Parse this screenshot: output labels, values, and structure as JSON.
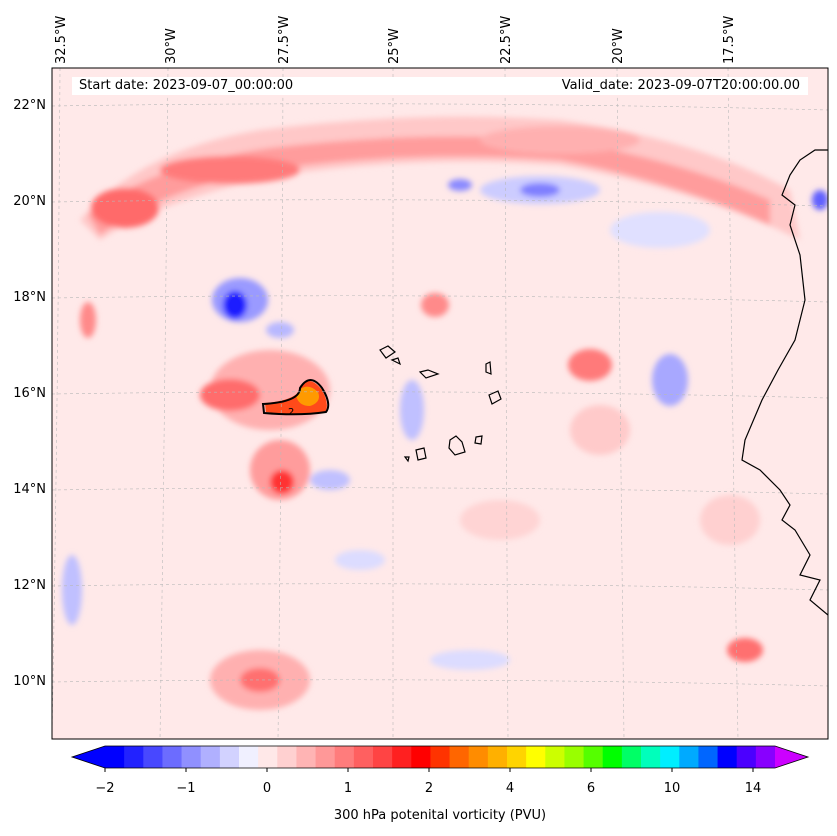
{
  "figure": {
    "start_date": "Start date: 2023-09-07_00:00:00",
    "valid_date": "Valid_date: 2023-09-07T20:00:00.00"
  },
  "axes": {
    "lon_labels": [
      "32.5°W",
      "30°W",
      "27.5°W",
      "25°W",
      "22.5°W",
      "20°W",
      "17.5°W"
    ],
    "lat_labels": [
      "22°N",
      "20°N",
      "18°N",
      "16°N",
      "14°N",
      "12°N",
      "10°N"
    ]
  },
  "colorbar": {
    "tick_labels": [
      "−2",
      "−1",
      "0",
      "1",
      "2",
      "4",
      "6",
      "10",
      "14"
    ],
    "title": "300 hPa potenital vorticity (PVU)",
    "colors": [
      "#0000ff",
      "#2222ff",
      "#4848ff",
      "#6c6cff",
      "#9090ff",
      "#b0b0ff",
      "#d2d2ff",
      "#f0f0ff",
      "#ffe8e8",
      "#ffd0d0",
      "#ffb4b4",
      "#ff9898",
      "#ff7c7c",
      "#ff6060",
      "#ff4444",
      "#ff2020",
      "#ff0000",
      "#ff3300",
      "#ff6600",
      "#ff8c00",
      "#ffb000",
      "#ffd400",
      "#ffff00",
      "#ccff00",
      "#99ff00",
      "#55ff00",
      "#00ff00",
      "#00ff66",
      "#00ffbb",
      "#00eeff",
      "#00aaff",
      "#0066ff",
      "#0000ff",
      "#4b00ff",
      "#8800ff"
    ],
    "under_color": "#0000ff",
    "over_color": "#cc00ff"
  },
  "annotations": {
    "contour_label": "2"
  }
}
